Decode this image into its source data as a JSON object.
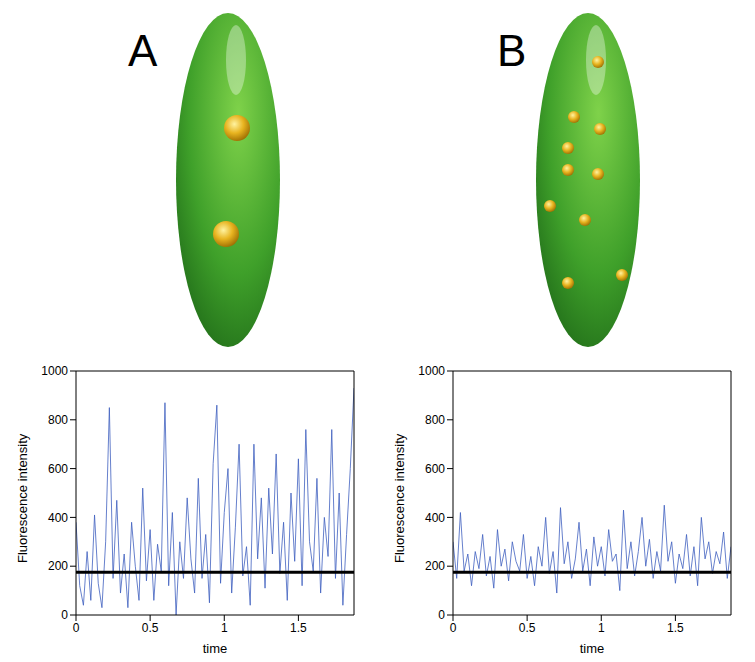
{
  "chart_data": [
    {
      "type": "line",
      "title": "A",
      "xlabel": "time",
      "ylabel": "Fluorescence intensity",
      "x": [
        0,
        0.025,
        0.05,
        0.075,
        0.1,
        0.125,
        0.15,
        0.175,
        0.2,
        0.225,
        0.25,
        0.275,
        0.3,
        0.325,
        0.35,
        0.375,
        0.4,
        0.425,
        0.45,
        0.475,
        0.5,
        0.525,
        0.55,
        0.575,
        0.6,
        0.625,
        0.65,
        0.675,
        0.7,
        0.725,
        0.75,
        0.775,
        0.8,
        0.825,
        0.85,
        0.875,
        0.9,
        0.925,
        0.95,
        0.975,
        1,
        1.025,
        1.05,
        1.075,
        1.1,
        1.125,
        1.15,
        1.175,
        1.2,
        1.225,
        1.25,
        1.275,
        1.3,
        1.325,
        1.35,
        1.375,
        1.4,
        1.425,
        1.45,
        1.475,
        1.5,
        1.525,
        1.55,
        1.575,
        1.6,
        1.625,
        1.65,
        1.675,
        1.7,
        1.725,
        1.75,
        1.775,
        1.8,
        1.825,
        1.85,
        1.875
      ],
      "series": [
        {
          "color": "#3f5fbf",
          "values": [
            380,
            120,
            40,
            260,
            60,
            410,
            130,
            30,
            300,
            850,
            150,
            470,
            90,
            250,
            30,
            380,
            200,
            60,
            520,
            140,
            350,
            60,
            290,
            180,
            870,
            120,
            420,
            0,
            300,
            150,
            480,
            230,
            90,
            560,
            150,
            330,
            50,
            620,
            860,
            130,
            420,
            600,
            90,
            360,
            700,
            160,
            280,
            40,
            700,
            230,
            480,
            110,
            520,
            250,
            660,
            170,
            380,
            60,
            500,
            220,
            640,
            120,
            760,
            300,
            180,
            560,
            90,
            400,
            240,
            760,
            150,
            500,
            40,
            330,
            600,
            930
          ]
        }
      ],
      "mean": 175,
      "xlim": [
        0,
        1.875
      ],
      "xticks": [
        0,
        0.5,
        1,
        1.5
      ],
      "ylim": [
        0,
        1000
      ],
      "yticks": [
        0,
        200,
        400,
        600,
        800,
        1000
      ]
    },
    {
      "type": "line",
      "title": "B",
      "xlabel": "time",
      "ylabel": "Fluorescence intensity",
      "x": [
        0,
        0.025,
        0.05,
        0.075,
        0.1,
        0.125,
        0.15,
        0.175,
        0.2,
        0.225,
        0.25,
        0.275,
        0.3,
        0.325,
        0.35,
        0.375,
        0.4,
        0.425,
        0.45,
        0.475,
        0.5,
        0.525,
        0.55,
        0.575,
        0.6,
        0.625,
        0.65,
        0.675,
        0.7,
        0.725,
        0.75,
        0.775,
        0.8,
        0.825,
        0.85,
        0.875,
        0.9,
        0.925,
        0.95,
        0.975,
        1,
        1.025,
        1.05,
        1.075,
        1.1,
        1.125,
        1.15,
        1.175,
        1.2,
        1.225,
        1.25,
        1.275,
        1.3,
        1.325,
        1.35,
        1.375,
        1.4,
        1.425,
        1.45,
        1.475,
        1.5,
        1.525,
        1.55,
        1.575,
        1.6,
        1.625,
        1.65,
        1.675,
        1.7,
        1.725,
        1.75,
        1.775,
        1.8,
        1.825,
        1.85,
        1.875
      ],
      "series": [
        {
          "color": "#3f5fbf",
          "values": [
            300,
            150,
            420,
            180,
            250,
            120,
            260,
            190,
            330,
            160,
            240,
            110,
            350,
            200,
            270,
            140,
            300,
            220,
            180,
            330,
            150,
            240,
            120,
            280,
            200,
            400,
            170,
            260,
            90,
            440,
            210,
            300,
            150,
            230,
            380,
            180,
            270,
            120,
            320,
            200,
            280,
            160,
            350,
            220,
            250,
            100,
            430,
            190,
            300,
            160,
            260,
            400,
            200,
            310,
            150,
            260,
            180,
            450,
            220,
            300,
            130,
            250,
            190,
            330,
            160,
            280,
            120,
            400,
            230,
            300,
            170,
            260,
            210,
            340,
            150,
            280
          ]
        }
      ],
      "mean": 175,
      "xlim": [
        0,
        1.875
      ],
      "xticks": [
        0,
        0.5,
        1,
        1.5
      ],
      "ylim": [
        0,
        1000
      ],
      "yticks": [
        0,
        200,
        400,
        600,
        800,
        1000
      ]
    }
  ]
}
